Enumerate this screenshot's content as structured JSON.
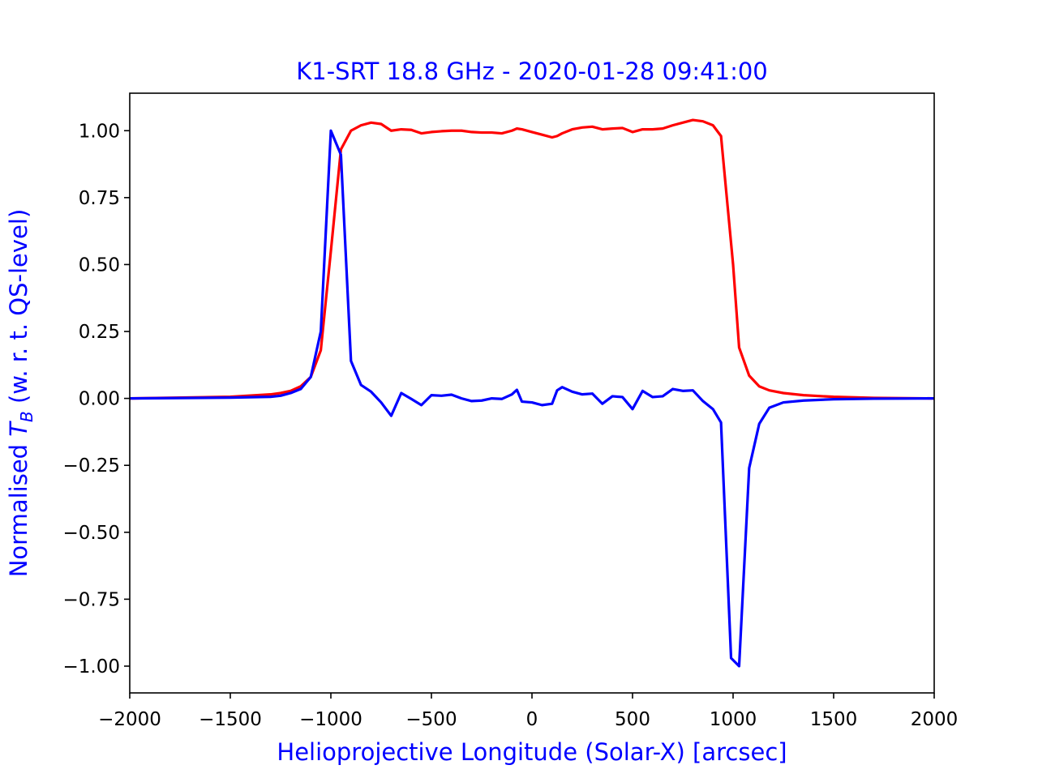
{
  "chart_data": {
    "type": "line",
    "title": "K1-SRT 18.8 GHz - 2020-01-28 09:41:00",
    "xlabel": "Helioprojective Longitude (Solar-X) [arcsec]",
    "ylabel": {
      "prefix": "Normalised ",
      "symbol": "T",
      "subscript": "B",
      "suffix": " (w. r. t. QS-level)"
    },
    "xlim": [
      -2000,
      2000
    ],
    "ylim": [
      -1.1,
      1.14
    ],
    "xticks": [
      -2000,
      -1500,
      -1000,
      -500,
      0,
      500,
      1000,
      1500,
      2000
    ],
    "xtick_labels": [
      "−2000",
      "−1500",
      "−1000",
      "−500",
      "0",
      "500",
      "1000",
      "1500",
      "2000"
    ],
    "yticks": [
      1.0,
      0.75,
      0.5,
      0.25,
      0.0,
      -0.25,
      -0.5,
      -0.75,
      -1.0
    ],
    "ytick_labels": [
      "1.00",
      "0.75",
      "0.50",
      "0.25",
      "0.00",
      "−0.25",
      "−0.50",
      "−0.75",
      "−1.00"
    ],
    "grid": false,
    "legend": "none",
    "colors": {
      "title": "#0000ff",
      "axis_labels": "#0000ff",
      "series_red": "#ff0000",
      "series_blue": "#0000ff"
    },
    "series": [
      {
        "color": "#ff0000",
        "x": [
          -2000,
          -1500,
          -1300,
          -1250,
          -1200,
          -1150,
          -1100,
          -1050,
          -1000,
          -950,
          -900,
          -850,
          -800,
          -750,
          -700,
          -650,
          -600,
          -550,
          -500,
          -450,
          -400,
          -350,
          -300,
          -250,
          -200,
          -150,
          -100,
          -75,
          -50,
          0,
          50,
          100,
          125,
          150,
          200,
          250,
          300,
          350,
          400,
          450,
          500,
          550,
          600,
          650,
          700,
          750,
          800,
          850,
          900,
          940,
          1000,
          1030,
          1080,
          1130,
          1180,
          1250,
          1350,
          1500,
          1700,
          2000
        ],
        "y": [
          0.0,
          0.006,
          0.015,
          0.02,
          0.028,
          0.045,
          0.08,
          0.18,
          0.55,
          0.93,
          1.0,
          1.02,
          1.03,
          1.025,
          1.0,
          1.005,
          1.003,
          0.99,
          0.995,
          0.998,
          1.0,
          1.0,
          0.995,
          0.993,
          0.993,
          0.99,
          1.0,
          1.008,
          1.005,
          0.995,
          0.985,
          0.975,
          0.98,
          0.99,
          1.005,
          1.012,
          1.015,
          1.005,
          1.008,
          1.01,
          0.995,
          1.005,
          1.005,
          1.008,
          1.02,
          1.03,
          1.04,
          1.035,
          1.02,
          0.98,
          0.5,
          0.19,
          0.085,
          0.045,
          0.03,
          0.02,
          0.012,
          0.006,
          0.002,
          0.0
        ]
      },
      {
        "color": "#0000ff",
        "x": [
          -2000,
          -1500,
          -1300,
          -1250,
          -1200,
          -1150,
          -1100,
          -1050,
          -1000,
          -950,
          -900,
          -850,
          -800,
          -750,
          -700,
          -650,
          -600,
          -550,
          -500,
          -450,
          -400,
          -350,
          -300,
          -250,
          -200,
          -150,
          -100,
          -75,
          -50,
          0,
          50,
          100,
          125,
          150,
          200,
          250,
          300,
          350,
          400,
          450,
          500,
          550,
          600,
          650,
          700,
          750,
          800,
          850,
          900,
          940,
          990,
          1030,
          1080,
          1130,
          1180,
          1250,
          1350,
          1500,
          1700,
          2000
        ],
        "y": [
          0.0,
          0.003,
          0.006,
          0.01,
          0.02,
          0.035,
          0.08,
          0.25,
          1.0,
          0.91,
          0.14,
          0.05,
          0.025,
          -0.015,
          -0.065,
          0.02,
          -0.002,
          -0.025,
          0.012,
          0.01,
          0.014,
          0.0,
          -0.01,
          -0.008,
          0.0,
          -0.002,
          0.015,
          0.032,
          -0.012,
          -0.015,
          -0.025,
          -0.02,
          0.03,
          0.042,
          0.025,
          0.015,
          0.018,
          -0.02,
          0.008,
          0.005,
          -0.04,
          0.028,
          0.005,
          0.008,
          0.035,
          0.028,
          0.03,
          -0.01,
          -0.04,
          -0.09,
          -0.97,
          -1.0,
          -0.26,
          -0.095,
          -0.035,
          -0.015,
          -0.008,
          -0.003,
          -0.001,
          0.0
        ]
      }
    ]
  }
}
